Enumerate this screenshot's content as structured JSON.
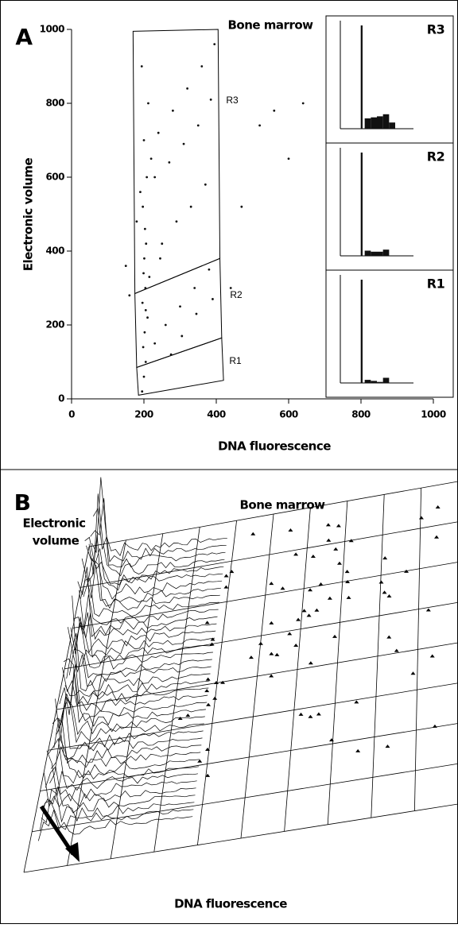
{
  "chart_data": {
    "type": "scatter",
    "panel": "A",
    "title": "Bone marrow",
    "xlabel": "DNA fluorescence",
    "ylabel": "Electronic volume",
    "xlim": [
      0,
      1000
    ],
    "ylim": [
      0,
      1000
    ],
    "xticks": [
      0,
      200,
      400,
      600,
      800,
      1000
    ],
    "yticks": [
      0,
      200,
      400,
      600,
      800,
      1000
    ],
    "color": "#111111",
    "x": [
      195,
      200,
      205,
      198,
      202,
      210,
      196,
      204,
      199,
      201,
      206,
      203,
      197,
      208,
      200,
      212,
      194,
      205,
      230,
      260,
      300,
      340,
      380,
      250,
      290,
      330,
      370,
      220,
      240,
      280,
      320,
      360,
      395,
      215,
      245,
      275,
      305,
      345,
      390,
      230,
      270,
      310,
      350,
      385,
      180,
      190,
      440,
      520,
      560,
      600,
      150,
      160,
      470,
      640
    ],
    "y": [
      20,
      60,
      100,
      140,
      180,
      220,
      260,
      300,
      340,
      380,
      420,
      460,
      520,
      600,
      700,
      800,
      900,
      240,
      150,
      200,
      250,
      300,
      350,
      420,
      480,
      520,
      580,
      650,
      720,
      780,
      840,
      900,
      960,
      330,
      380,
      120,
      170,
      230,
      270,
      600,
      640,
      690,
      740,
      810,
      480,
      560,
      300,
      740,
      780,
      650,
      360,
      280,
      520,
      800
    ],
    "gates": [
      {
        "name": "R3",
        "x": [
          170,
          405,
          410,
          175
        ],
        "y": [
          995,
          1000,
          380,
          285
        ]
      },
      {
        "name": "R2",
        "x": [
          175,
          410,
          415,
          180
        ],
        "y": [
          285,
          380,
          165,
          85
        ]
      },
      {
        "name": "R1",
        "x": [
          180,
          415,
          420,
          185
        ],
        "y": [
          85,
          165,
          50,
          10
        ]
      }
    ],
    "histograms": [
      {
        "name": "R3",
        "values": [
          0,
          0,
          0,
          100,
          10,
          11,
          12,
          14,
          6,
          0,
          0,
          0
        ]
      },
      {
        "name": "R2",
        "values": [
          0,
          0,
          0,
          100,
          5,
          4,
          4,
          6,
          0,
          0,
          0,
          0
        ]
      },
      {
        "name": "R1",
        "values": [
          0,
          0,
          0,
          100,
          3,
          2,
          1,
          5,
          0,
          0,
          0,
          0
        ]
      }
    ]
  },
  "panel_b": {
    "panel": "B",
    "title": "Bone marrow",
    "ylabel": [
      "Electronic",
      "volume"
    ],
    "xlabel": "DNA fluorescence"
  }
}
